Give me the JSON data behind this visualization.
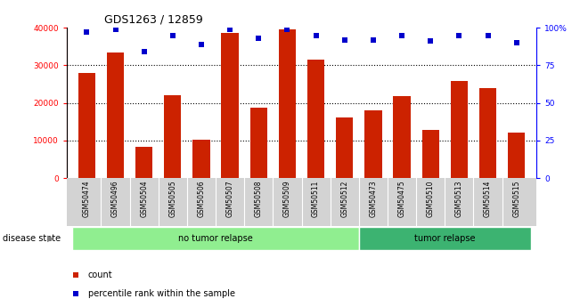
{
  "title": "GDS1263 / 12859",
  "samples": [
    "GSM50474",
    "GSM50496",
    "GSM50504",
    "GSM50505",
    "GSM50506",
    "GSM50507",
    "GSM50508",
    "GSM50509",
    "GSM50511",
    "GSM50512",
    "GSM50473",
    "GSM50475",
    "GSM50510",
    "GSM50513",
    "GSM50514",
    "GSM50515"
  ],
  "counts": [
    28000,
    33500,
    8200,
    22000,
    10200,
    38500,
    18700,
    39500,
    31500,
    16000,
    18000,
    21700,
    12700,
    25700,
    24000,
    12100
  ],
  "percentile_pct": [
    97,
    99,
    84,
    95,
    89,
    99,
    93,
    99,
    95,
    92,
    92,
    95,
    91,
    95,
    95,
    90
  ],
  "groups": [
    {
      "label": "no tumor relapse",
      "start": 0,
      "end": 10,
      "color": "#90EE90"
    },
    {
      "label": "tumor relapse",
      "start": 10,
      "end": 16,
      "color": "#3CB371"
    }
  ],
  "bar_color": "#CC2200",
  "scatter_color": "#0000CC",
  "ylim_left": [
    0,
    40000
  ],
  "ylim_right": [
    0,
    100
  ],
  "yticks_left": [
    0,
    10000,
    20000,
    30000,
    40000
  ],
  "ytick_labels_left": [
    "0",
    "10000",
    "20000",
    "30000",
    "40000"
  ],
  "yticks_right": [
    0,
    25,
    50,
    75,
    100
  ],
  "ytick_labels_right": [
    "0",
    "25",
    "50",
    "75",
    "100%"
  ],
  "background_color": "#ffffff"
}
